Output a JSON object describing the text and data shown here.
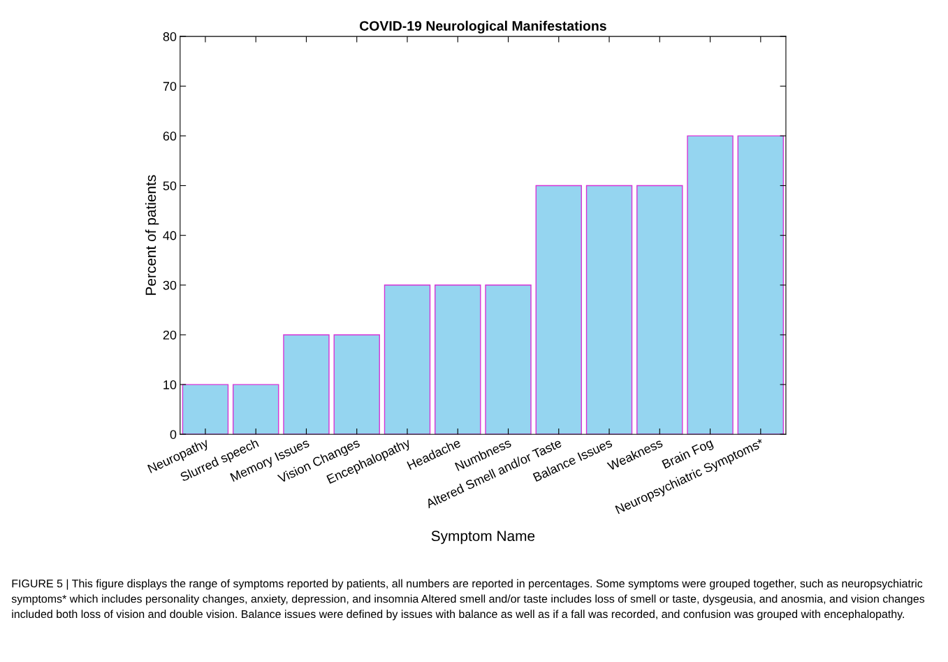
{
  "chart_data": {
    "type": "bar",
    "title": "COVID-19 Neurological Manifestations",
    "xlabel": "Symptom Name",
    "ylabel": "Percent of patients",
    "categories": [
      "Neuropathy",
      "Slurred speech",
      "Memory Issues",
      "Vision Changes",
      "Encephalopathy",
      "Headache",
      "Numbness",
      "Altered Smell and/or Taste",
      "Balance Issues",
      "Weakness",
      "Brain Fog",
      "Neuropsychiatric Symptoms*"
    ],
    "values": [
      10,
      10,
      20,
      20,
      30,
      30,
      30,
      50,
      50,
      50,
      60,
      60
    ],
    "color": "#95d5f0",
    "ylim": [
      0,
      80
    ],
    "yticks": [
      0,
      10,
      20,
      30,
      40,
      50,
      60,
      70,
      80
    ],
    "grid": false,
    "legend": false,
    "annotations": [
      "FIGURE 5 | This figure displays the range of symptoms reported by patients, all numbers are reported in percentages. Some symptoms were grouped together, such as neuropsychiatric symptoms* which includes personality changes, anxiety, depression, and insomnia Altered smell and/or taste includes loss of smell or taste, dysgeusia, and anosmia, and vision changes included both loss of vision and double vision. Balance issues were defined by issues with balance as well as if a fall was recorded, and confusion was grouped with encephalopathy."
    ]
  }
}
